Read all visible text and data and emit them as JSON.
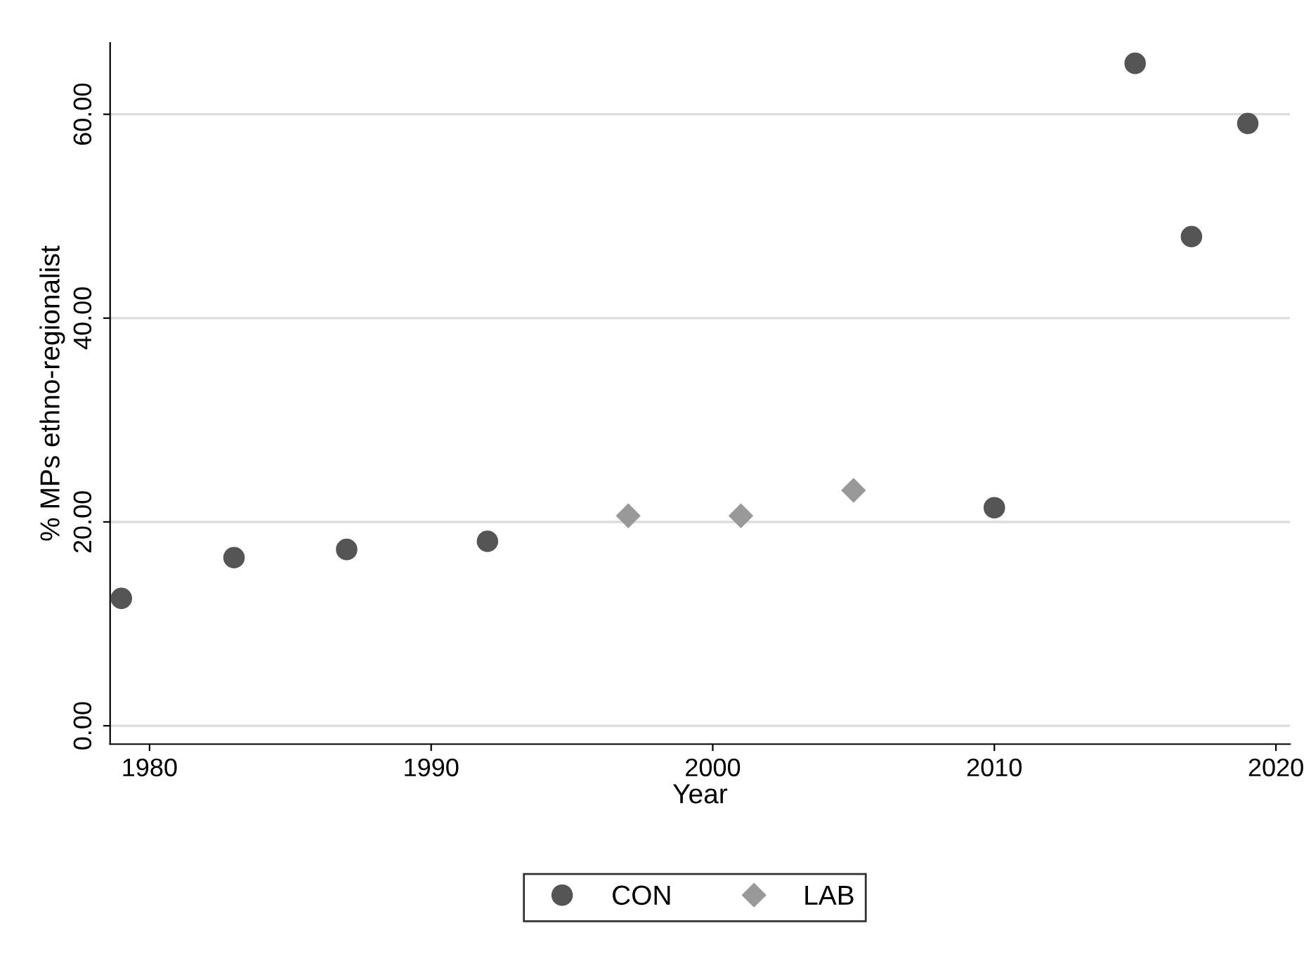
{
  "chart_data": {
    "type": "scatter",
    "xlabel": "Year",
    "ylabel": "% MPs ethno-regionalist",
    "series": [
      {
        "name": "CON",
        "color": "#555555",
        "marker": "circle",
        "x": [
          1979,
          1983,
          1987,
          1992,
          2010,
          2015,
          2017,
          2019
        ],
        "values": [
          12.5,
          16.5,
          17.3,
          18.1,
          21.4,
          65.0,
          48.0,
          59.1
        ]
      },
      {
        "name": "LAB",
        "color": "#999999",
        "marker": "diamond",
        "x": [
          1997,
          2001,
          2005
        ],
        "values": [
          20.6,
          20.6,
          23.1
        ]
      }
    ],
    "xlim": [
      1978.6,
      2020.5
    ],
    "xticks": [
      1980,
      1990,
      2000,
      2010,
      2020
    ],
    "ylim": [
      -1.8,
      67
    ],
    "yticks": [
      {
        "value": 0,
        "label": "0.00"
      },
      {
        "value": 20,
        "label": "20.00"
      },
      {
        "value": 40,
        "label": "40.00"
      },
      {
        "value": 60,
        "label": "60.00"
      }
    ],
    "grid": "y",
    "legend": "bottom"
  }
}
